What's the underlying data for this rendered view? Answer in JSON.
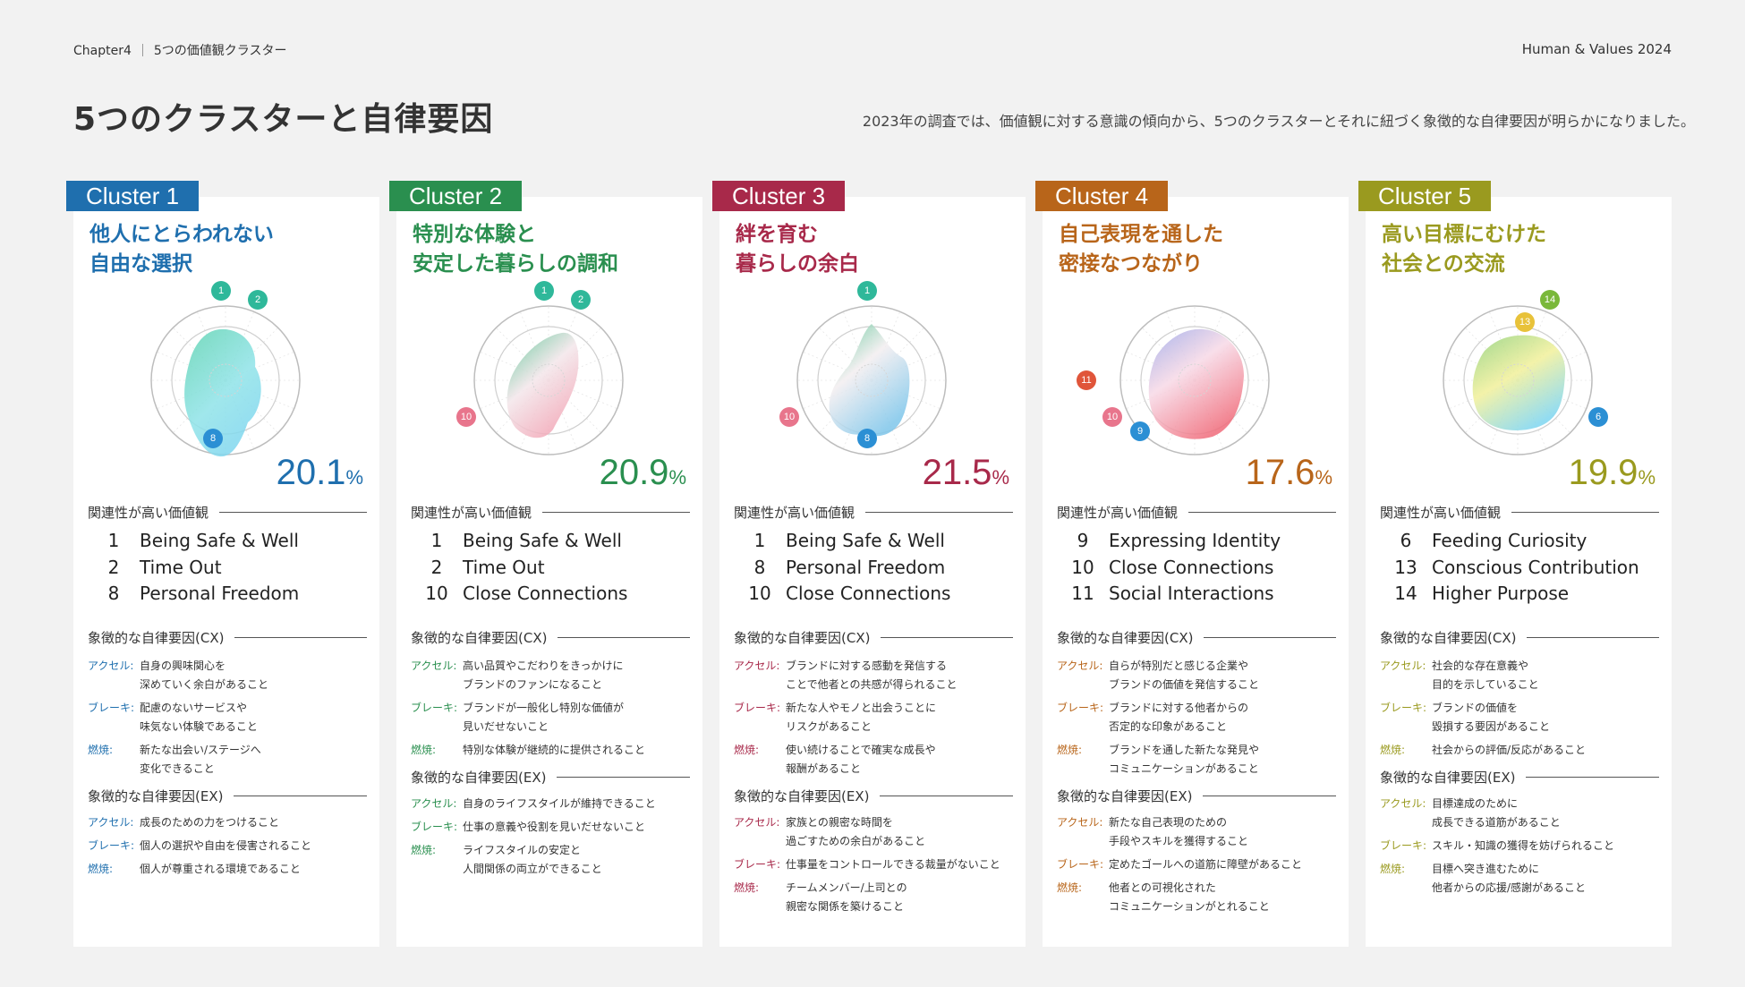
{
  "header": {
    "chapter": "Chapter4",
    "section": "5つの価値観クラスター",
    "brand": "Human & Values 2024"
  },
  "page_title": "5つのクラスターと自律要因",
  "lead_text": "2023年の調査では、価値観に対する意識の傾向から、5つのクラスターとそれに紐づく象徴的な自律要因が明らかになりました。",
  "labels": {
    "values_heading": "関連性が高い価値観",
    "cx_heading": "象徴的な自律要因(CX)",
    "ex_heading": "象徴的な自律要因(EX)",
    "accel": "アクセル:",
    "brake": "ブレーキ:",
    "fuel": "燃焼:",
    "pct_unit": "%"
  },
  "clusters": [
    {
      "tag": "Cluster 1",
      "color": "#1f6fae",
      "headline_1": "他人にとらわれない",
      "headline_2": "自由な選択",
      "pct": "20.1",
      "values": [
        [
          "1",
          "Being Safe & Well"
        ],
        [
          "2",
          "Time Out"
        ],
        [
          "8",
          "Personal Freedom"
        ]
      ],
      "cx": [
        "自身の興味関心を\n深めていく余白があること",
        "配慮のないサービスや\n味気ない体験であること",
        "新たな出会い/ステージへ\n変化できること"
      ],
      "ex": [
        "成長のための力をつけること",
        "個人の選択や自由を侵害されること",
        "個人が尊重される環境であること"
      ],
      "dots": [
        {
          "n": "1",
          "c": "#2fb89a"
        },
        {
          "n": "2",
          "c": "#2fb89a"
        },
        {
          "n": "8",
          "c": "#2b8fd4"
        }
      ]
    },
    {
      "tag": "Cluster 2",
      "color": "#2a8f4f",
      "headline_1": "特別な体験と",
      "headline_2": "安定した暮らしの調和",
      "pct": "20.9",
      "values": [
        [
          "1",
          "Being Safe & Well"
        ],
        [
          "2",
          "Time Out"
        ],
        [
          "10",
          "Close Connections"
        ]
      ],
      "cx": [
        "高い品質やこだわりをきっかけに\nブランドのファンになること",
        "ブランドが一般化し特別な価値が\n見いだせないこと",
        "特別な体験が継続的に提供されること"
      ],
      "ex": [
        "自身のライフスタイルが維持できること",
        "仕事の意義や役割を見いだせないこと",
        "ライフスタイルの安定と\n人間関係の両立ができること"
      ],
      "dots": [
        {
          "n": "1",
          "c": "#2fb89a"
        },
        {
          "n": "2",
          "c": "#2fb89a"
        },
        {
          "n": "10",
          "c": "#e8758c"
        }
      ]
    },
    {
      "tag": "Cluster 3",
      "color": "#a8294a",
      "headline_1": "絆を育む",
      "headline_2": "暮らしの余白",
      "pct": "21.5",
      "values": [
        [
          "1",
          "Being Safe & Well"
        ],
        [
          "8",
          "Personal Freedom"
        ],
        [
          "10",
          "Close Connections"
        ]
      ],
      "cx": [
        "ブランドに対する感動を発信する\nことで他者との共感が得られること",
        "新たな人やモノと出会うことに\nリスクがあること",
        "使い続けることで確実な成長や\n報酬があること"
      ],
      "ex": [
        "家族との親密な時間を\n過ごすための余白があること",
        "仕事量をコントロールできる裁量がないこと",
        "チームメンバー/上司との\n親密な関係を築けること"
      ],
      "dots": [
        {
          "n": "1",
          "c": "#2fb89a"
        },
        {
          "n": "10",
          "c": "#e8758c"
        },
        {
          "n": "8",
          "c": "#2b8fd4"
        }
      ]
    },
    {
      "tag": "Cluster 4",
      "color": "#b8651a",
      "headline_1": "自己表現を通した",
      "headline_2": "密接なつながり",
      "pct": "17.6",
      "values": [
        [
          "9",
          "Expressing Identity"
        ],
        [
          "10",
          "Close Connections"
        ],
        [
          "11",
          "Social Interactions"
        ]
      ],
      "cx": [
        "自らが特別だと感じる企業や\nブランドの価値を発信すること",
        "ブランドに対する他者からの\n否定的な印象があること",
        "ブランドを通した新たな発見や\nコミュニケーションがあること"
      ],
      "ex": [
        "新たな自己表現のための\n手段やスキルを獲得すること",
        "定めたゴールへの道筋に障壁があること",
        "他者との可視化された\nコミュニケーションがとれること"
      ],
      "dots": [
        {
          "n": "11",
          "c": "#e0553a"
        },
        {
          "n": "10",
          "c": "#e8758c"
        },
        {
          "n": "9",
          "c": "#2b8fd4"
        }
      ]
    },
    {
      "tag": "Cluster 5",
      "color": "#9a9a1f",
      "headline_1": "高い目標にむけた",
      "headline_2": "社会との交流",
      "pct": "19.9",
      "values": [
        [
          "6",
          "Feeding Curiosity"
        ],
        [
          "13",
          "Conscious Contribution"
        ],
        [
          "14",
          "Higher Purpose"
        ]
      ],
      "cx": [
        "社会的な存在意義や\n目的を示していること",
        "ブランドの価値を\n毀損する要因があること",
        "社会からの評価/反応があること"
      ],
      "ex": [
        "目標達成のために\n成長できる道筋があること",
        "スキル・知識の獲得を妨げられること",
        "目標へ突き進むために\n他者からの応援/感謝があること"
      ],
      "dots": [
        {
          "n": "14",
          "c": "#7ab83a"
        },
        {
          "n": "13",
          "c": "#e8c23a"
        },
        {
          "n": "6",
          "c": "#2b8fd4"
        }
      ]
    }
  ]
}
